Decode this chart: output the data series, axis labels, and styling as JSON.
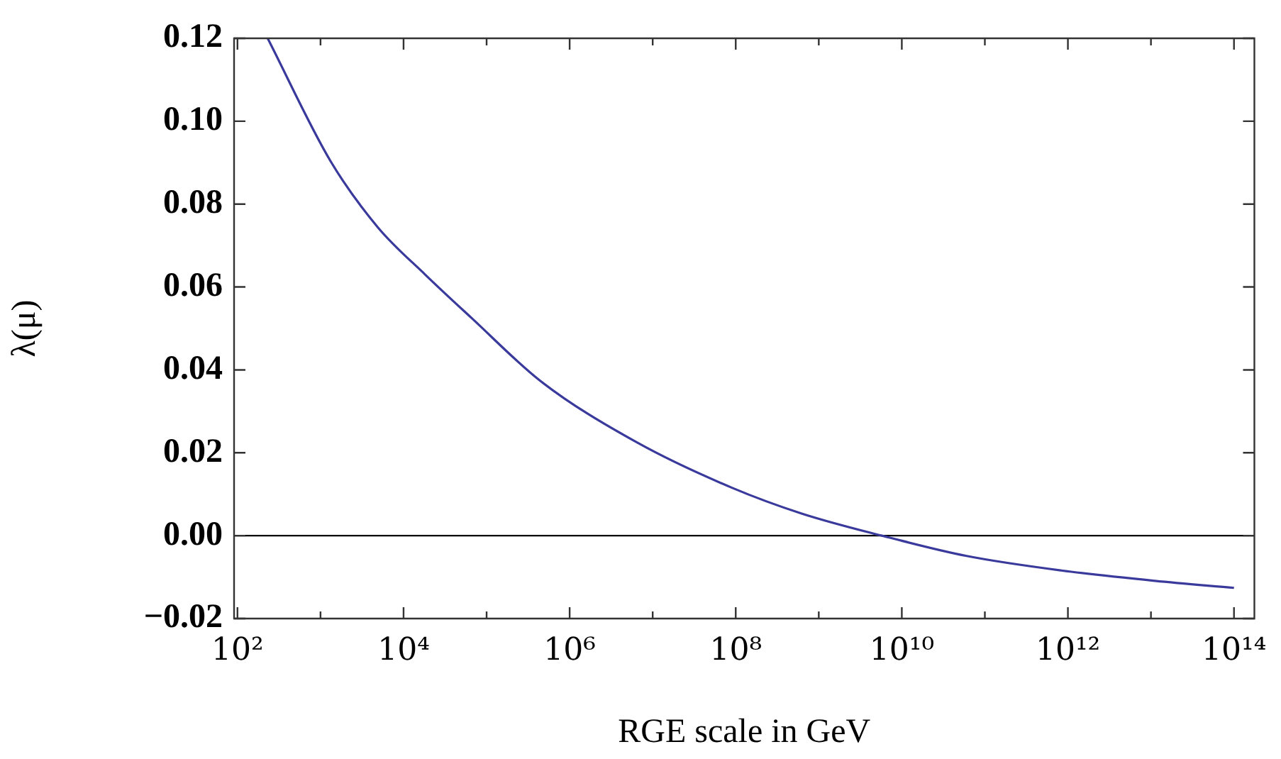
{
  "chart_data": {
    "type": "line",
    "xlabel": "RGE scale in GeV",
    "ylabel": "λ(μ)",
    "log": "x",
    "marker": "none",
    "line_style": "solid",
    "x": [
      231,
      1318,
      4898,
      18197,
      66069,
      446684,
      6460000,
      89100000,
      631000000,
      5750000000,
      60300000000,
      832000000000,
      11200000000000,
      100000000000000
    ],
    "series": [
      {
        "color": "#3a3a9c",
        "values": [
          0.12,
          0.0904,
          0.0744,
          0.063,
          0.0525,
          0.0373,
          0.0225,
          0.0116,
          0.0053,
          0.0,
          -0.0049,
          -0.0084,
          -0.0109,
          -0.0126
        ]
      }
    ],
    "xlim": [
      91,
      176000000000000
    ],
    "ylim": [
      -0.02,
      0.12
    ],
    "xticks": [
      {
        "value": 100,
        "label": "10²"
      },
      {
        "value": 1000,
        "label": null
      },
      {
        "value": 10000,
        "label": "10⁴"
      },
      {
        "value": 100000,
        "label": null
      },
      {
        "value": 1000000,
        "label": "10⁶"
      },
      {
        "value": 10000000,
        "label": null
      },
      {
        "value": 100000000,
        "label": "10⁸"
      },
      {
        "value": 1000000000,
        "label": null
      },
      {
        "value": 10000000000,
        "label": "10¹⁰"
      },
      {
        "value": 100000000000,
        "label": null
      },
      {
        "value": 1000000000000,
        "label": "10¹²"
      },
      {
        "value": 10000000000000,
        "label": null
      },
      {
        "value": 100000000000000,
        "label": "10¹⁴"
      }
    ],
    "yticks": [
      {
        "value": -0.02,
        "label": "−0.02"
      },
      {
        "value": 0,
        "label": "0.00"
      },
      {
        "value": 0.02,
        "label": "0.02"
      },
      {
        "value": 0.04,
        "label": "0.04"
      },
      {
        "value": 0.06,
        "label": "0.06"
      },
      {
        "value": 0.08,
        "label": "0.08"
      },
      {
        "value": 0.1,
        "label": "0.10"
      },
      {
        "value": 0.12,
        "label": "0.12"
      }
    ],
    "ref_lines": [
      {
        "axis": "y",
        "value": 0,
        "color": "#000000"
      }
    ]
  }
}
